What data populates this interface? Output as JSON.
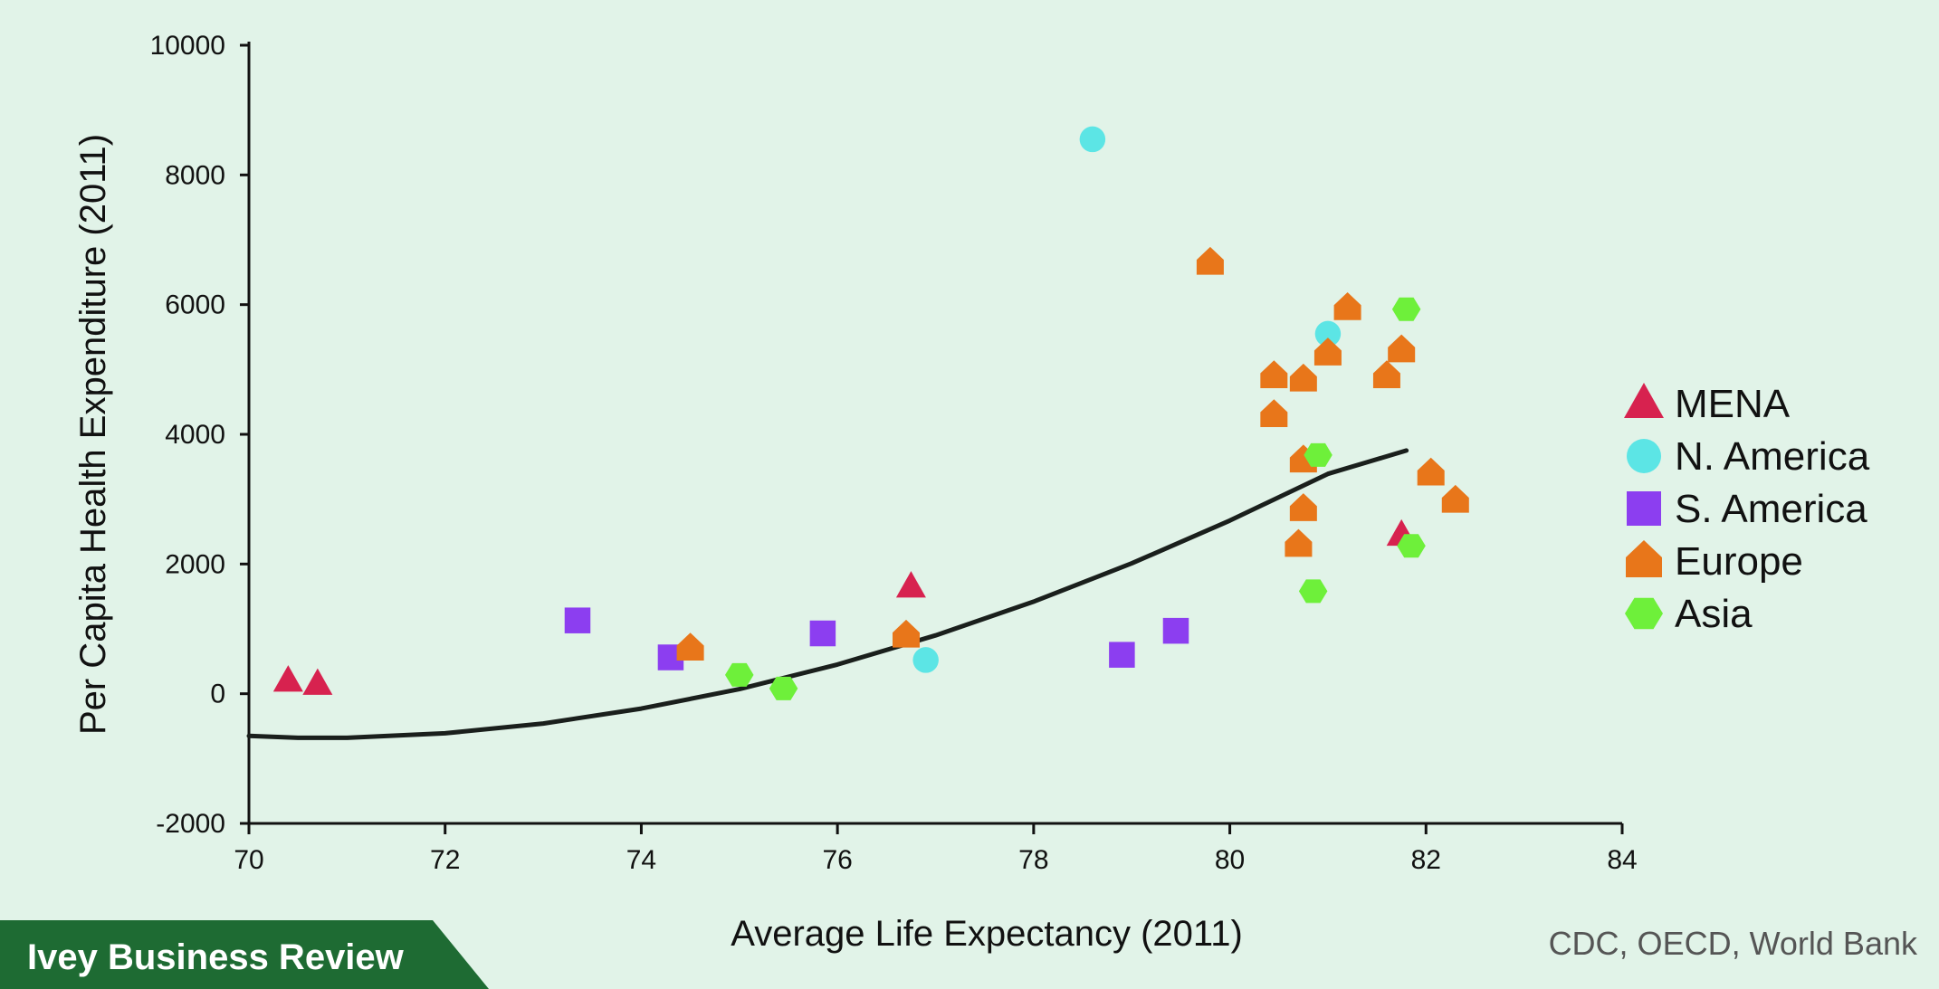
{
  "chart_data": {
    "type": "scatter",
    "title": "",
    "xlabel": "Average Life Expectancy (2011)",
    "ylabel": "Per Capita Health Expenditure (2011)",
    "xlim": [
      70,
      84
    ],
    "ylim": [
      -2000,
      10000
    ],
    "x_ticks": [
      70,
      72,
      74,
      76,
      78,
      80,
      82,
      84
    ],
    "y_ticks": [
      -2000,
      0,
      2000,
      4000,
      6000,
      8000,
      10000
    ],
    "grid": false,
    "legend_position": "right",
    "series": [
      {
        "name": "MENA",
        "marker": "triangle",
        "color": "#d7224f",
        "points": [
          [
            70.4,
            200
          ],
          [
            70.7,
            150
          ],
          [
            76.75,
            1650
          ],
          [
            81.75,
            2450
          ]
        ]
      },
      {
        "name": "N. America",
        "marker": "circle",
        "color": "#5ce5e5",
        "points": [
          [
            78.6,
            8550
          ],
          [
            81.0,
            5550
          ],
          [
            76.9,
            520
          ]
        ]
      },
      {
        "name": "S. America",
        "marker": "square",
        "color": "#8c3ef0",
        "points": [
          [
            73.35,
            1130
          ],
          [
            74.3,
            560
          ],
          [
            75.85,
            930
          ],
          [
            78.9,
            600
          ],
          [
            79.45,
            970
          ]
        ]
      },
      {
        "name": "Europe",
        "marker": "house",
        "color": "#e8761a",
        "points": [
          [
            74.5,
            700
          ],
          [
            76.7,
            900
          ],
          [
            79.8,
            6650
          ],
          [
            81.2,
            5950
          ],
          [
            81.0,
            5250
          ],
          [
            81.75,
            5300
          ],
          [
            81.6,
            4900
          ],
          [
            80.45,
            4900
          ],
          [
            80.75,
            4850
          ],
          [
            80.45,
            4300
          ],
          [
            80.75,
            3600
          ],
          [
            82.05,
            3400
          ],
          [
            82.3,
            2980
          ],
          [
            80.75,
            2850
          ],
          [
            80.7,
            2300
          ]
        ]
      },
      {
        "name": "Asia",
        "marker": "hexagon",
        "color": "#6ef03a",
        "points": [
          [
            75.0,
            290
          ],
          [
            75.45,
            80
          ],
          [
            81.8,
            5930
          ],
          [
            80.9,
            3680
          ],
          [
            81.85,
            2280
          ],
          [
            80.85,
            1580
          ]
        ]
      }
    ],
    "trendline": {
      "type": "quadratic",
      "color": "#1a1f1c",
      "points": [
        [
          70,
          -650
        ],
        [
          70.5,
          -680
        ],
        [
          71,
          -680
        ],
        [
          72,
          -610
        ],
        [
          73,
          -460
        ],
        [
          74,
          -230
        ],
        [
          75,
          70
        ],
        [
          76,
          450
        ],
        [
          77,
          900
        ],
        [
          78,
          1420
        ],
        [
          79,
          2010
        ],
        [
          80,
          2670
        ],
        [
          81,
          3390
        ],
        [
          81.8,
          3750
        ]
      ]
    }
  },
  "source_note": "CDC, OECD, World Bank",
  "brand": {
    "name": "Ivey Business Review",
    "background_color": "#1e6b33"
  }
}
